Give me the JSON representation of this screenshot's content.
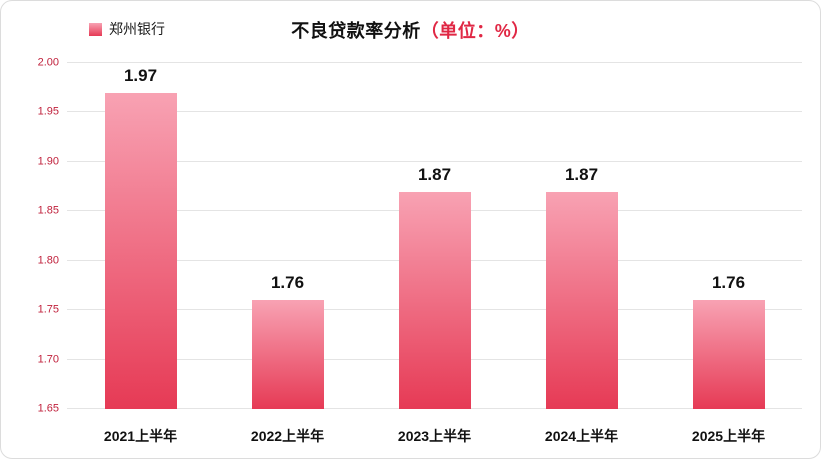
{
  "chart": {
    "legend_label": "郑州银行",
    "title_main": "不良贷款率分析",
    "title_unit": "（单位：%）"
  },
  "chart_data": {
    "type": "bar",
    "title": "不良贷款率分析（单位：%）",
    "series_name": "郑州银行",
    "categories": [
      "2021上半年",
      "2022上半年",
      "2023上半年",
      "2024上半年",
      "2025上半年"
    ],
    "values": [
      1.97,
      1.76,
      1.87,
      1.87,
      1.76
    ],
    "value_labels": [
      "1.97",
      "1.76",
      "1.87",
      "1.87",
      "1.76"
    ],
    "xlabel": "",
    "ylabel": "",
    "ylim": [
      1.65,
      2.0
    ],
    "yticks": [
      1.65,
      1.7,
      1.75,
      1.8,
      1.85,
      1.9,
      1.95,
      2.0
    ],
    "ytick_labels": [
      "1.65",
      "1.70",
      "1.75",
      "1.80",
      "1.85",
      "1.90",
      "1.95",
      "2.00"
    ],
    "grid": true,
    "legend_position": "top-left",
    "colors": {
      "bar_top": "#f8a2b3",
      "bar_bottom": "#e63a55",
      "tick_label": "#c0213c",
      "title_unit": "#e02744",
      "title_main": "#111111",
      "grid": "#e4e4e4",
      "border": "#dcdcdc"
    }
  }
}
